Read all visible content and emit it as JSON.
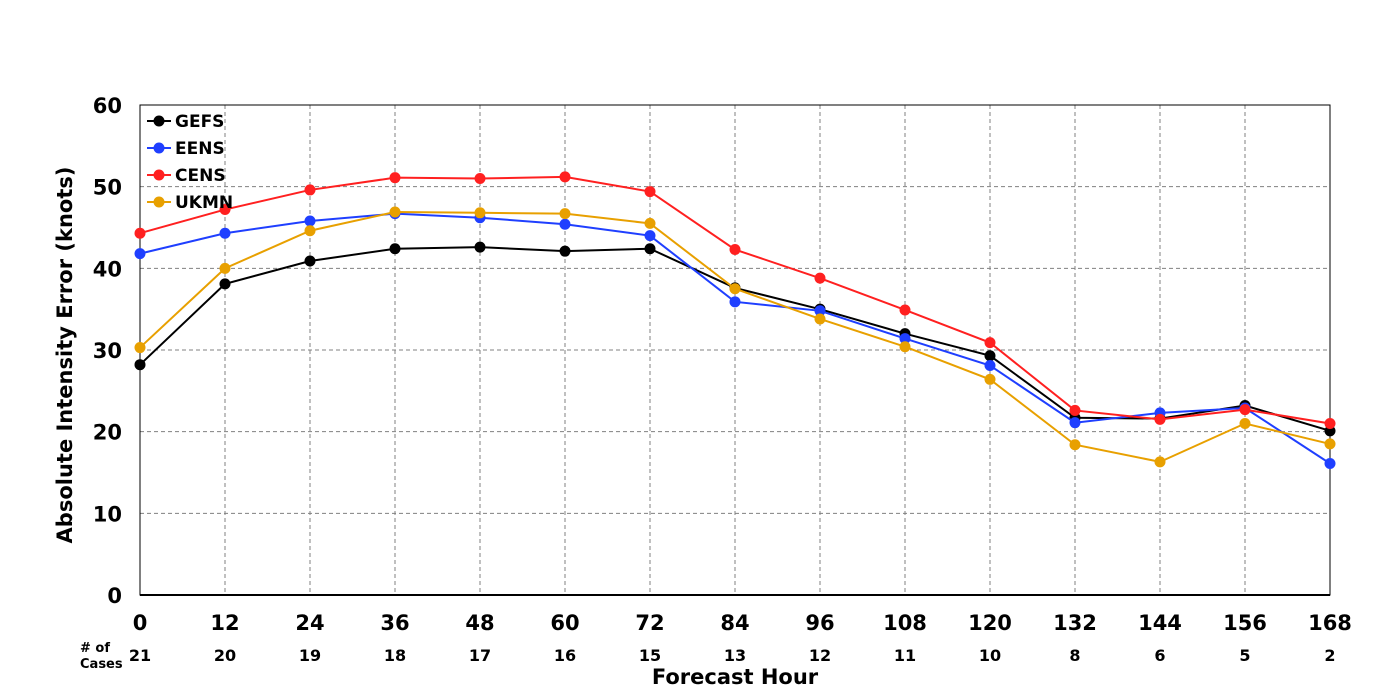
{
  "chart_data": {
    "type": "line",
    "title": "",
    "xlabel": "Forecast Hour",
    "ylabel": "Absolute Intensity Error (knots)",
    "x": [
      0,
      12,
      24,
      36,
      48,
      60,
      72,
      84,
      96,
      108,
      120,
      132,
      144,
      156,
      168
    ],
    "xlim": [
      0,
      168
    ],
    "ylim": [
      0,
      60
    ],
    "yticks": [
      0,
      10,
      20,
      30,
      40,
      50,
      60
    ],
    "grid": true,
    "legend_position": "top-left",
    "cases_title": [
      "# of",
      "Cases"
    ],
    "cases": [
      21,
      20,
      19,
      18,
      17,
      16,
      15,
      13,
      12,
      11,
      10,
      8,
      6,
      5,
      2
    ],
    "series": [
      {
        "name": "GEFS",
        "color": "#000000",
        "values": [
          28.2,
          38.1,
          40.9,
          42.4,
          42.6,
          42.1,
          42.4,
          37.6,
          35.0,
          32.0,
          29.3,
          21.7,
          21.6,
          23.2,
          20.1
        ]
      },
      {
        "name": "EENS",
        "color": "#1f3fff",
        "values": [
          41.8,
          44.3,
          45.8,
          46.7,
          46.2,
          45.4,
          44.0,
          35.9,
          34.8,
          31.4,
          28.1,
          21.1,
          22.3,
          22.9,
          16.1
        ]
      },
      {
        "name": "CENS",
        "color": "#ff2020",
        "values": [
          44.3,
          47.2,
          49.6,
          51.1,
          51.0,
          51.2,
          49.4,
          42.3,
          38.8,
          34.9,
          30.9,
          22.6,
          21.5,
          22.7,
          21.0
        ]
      },
      {
        "name": "UKMN",
        "color": "#e8a000",
        "values": [
          30.3,
          40.0,
          44.6,
          46.9,
          46.8,
          46.7,
          45.5,
          37.5,
          33.8,
          30.4,
          26.4,
          18.4,
          16.3,
          21.0,
          18.5
        ]
      }
    ]
  }
}
